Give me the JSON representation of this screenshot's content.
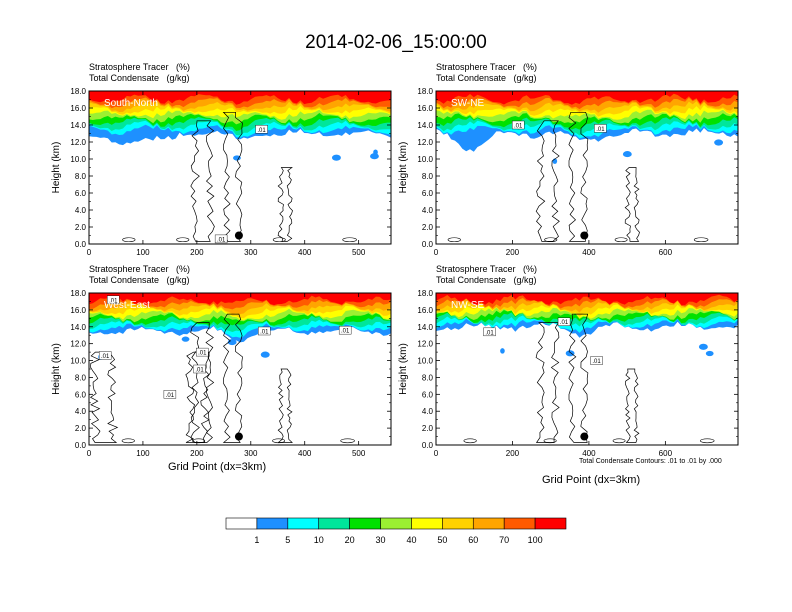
{
  "title": "2014-02-06_15:00:00",
  "chart_data": {
    "type": "heatmap",
    "colorbar": {
      "colors": [
        "#ffffff",
        "#1e90ff",
        "#00ffff",
        "#00e69b",
        "#00e100",
        "#9bf032",
        "#ffff00",
        "#ffd200",
        "#ffa500",
        "#ff5a00",
        "#ff0000"
      ],
      "labels": [
        "1",
        "5",
        "10",
        "20",
        "30",
        "40",
        "50",
        "60",
        "70",
        "100"
      ]
    },
    "fill_label": "Stratosphere Tracer   (%)",
    "contour_label": "Total Condensate   (g/kg)",
    "contour_note": "Total Condensate Contours: .01 to .01 by .000",
    "contour_value_label": ".01",
    "ylabel": "Height (km)",
    "xlabel": "Grid Point (dx=3km)",
    "yticks": [
      "0.0",
      "2.0",
      "4.0",
      "6.0",
      "8.0",
      "10.0",
      "12.0",
      "14.0",
      "16.0",
      "18.0"
    ],
    "ylim": [
      0,
      18
    ],
    "panels": [
      {
        "name": "South-North",
        "xlim": [
          0,
          560
        ],
        "xticks": [
          "0",
          "100",
          "200",
          "300",
          "400",
          "500"
        ],
        "marker_x": 278,
        "marker_y": 1.0,
        "tracer_base_km": 13.0,
        "contour_label_points": [
          [
            320,
            13.5
          ],
          [
            245,
            0.6
          ]
        ]
      },
      {
        "name": "SW-NE",
        "xlim": [
          0,
          790
        ],
        "xticks": [
          "0",
          "200",
          "400",
          "600"
        ],
        "marker_x": 388,
        "marker_y": 1.0,
        "tracer_base_km": 13.0,
        "contour_label_points": [
          [
            215,
            14.0
          ],
          [
            430,
            13.6
          ]
        ]
      },
      {
        "name": "West-East",
        "xlim": [
          0,
          560
        ],
        "xticks": [
          "0",
          "100",
          "200",
          "300",
          "400",
          "500"
        ],
        "marker_x": 278,
        "marker_y": 1.0,
        "tracer_base_km": 13.5,
        "contour_label_points": [
          [
            45,
            17.2
          ],
          [
            30,
            10.6
          ],
          [
            210,
            11.0
          ],
          [
            205,
            9.0
          ],
          [
            150,
            6.0
          ],
          [
            325,
            13.5
          ],
          [
            475,
            13.6
          ]
        ]
      },
      {
        "name": "NW-SE",
        "xlim": [
          0,
          790
        ],
        "xticks": [
          "0",
          "200",
          "400",
          "600"
        ],
        "marker_x": 388,
        "marker_y": 1.0,
        "tracer_base_km": 14.0,
        "contour_label_points": [
          [
            140,
            13.4
          ],
          [
            335,
            14.6
          ],
          [
            420,
            10.0
          ]
        ]
      }
    ]
  }
}
